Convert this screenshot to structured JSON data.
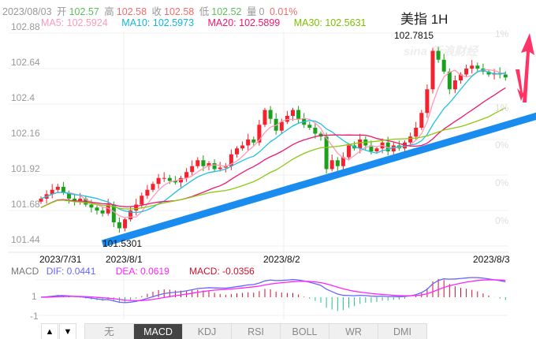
{
  "header": {
    "date": "2023/08/03",
    "open_label": "开",
    "open": "102.57",
    "high_label": "高",
    "high": "102.58",
    "close_label": "收",
    "close": "102.58",
    "low_label": "低",
    "low": "102.52",
    "vol_label": "量",
    "vol": "0",
    "change": "0.01%"
  },
  "ma": {
    "ma5": "MA5: 102.5924",
    "ma10": "MA10: 102.5973",
    "ma20": "MA20: 102.5899",
    "ma30": "MA30: 102.5631"
  },
  "colors": {
    "up": "#f5222d",
    "down": "#1aa01a",
    "ma5": "#ff9ab8",
    "ma10": "#1ec2e0",
    "ma20": "#f0186e",
    "ma30": "#8cc814",
    "dif": "#6666ff",
    "dea": "#ff22ff",
    "trend": "#1a8cf0",
    "arrow": "#ff3366"
  },
  "title": "美指 1H",
  "macd_header": {
    "label": "MACD",
    "dif": "DIF: 0.0441",
    "dea": "DEA: 0.0619",
    "macd": "MACD: -0.0356"
  },
  "toolbar": {
    "up": "▲",
    "down": "▼",
    "tabs": [
      "无",
      "MACD",
      "KDJ",
      "RSI",
      "BOLL",
      "WR",
      "DMI"
    ],
    "active": 1
  },
  "chart_data": {
    "type": "candlestick",
    "title": "美指 1H",
    "ylim": [
      101.44,
      102.88
    ],
    "yticks": [
      "102.88",
      "102.64",
      "102.4",
      "102.16",
      "101.92",
      "101.68",
      "101.44"
    ],
    "right_pct_labels": [
      "1%",
      "1%",
      "0%",
      "0%",
      "0%"
    ],
    "xticks": [
      "2023/7/31",
      "2023/8/1",
      "2023/8/2",
      "2023/8/3"
    ],
    "annotations": {
      "max": "102.7815",
      "min": "101.5301"
    },
    "macd_yticks": [
      "1",
      "-1"
    ],
    "closes": [
      101.76,
      101.79,
      101.82,
      101.84,
      101.8,
      101.76,
      101.74,
      101.76,
      101.72,
      101.7,
      101.68,
      101.66,
      101.72,
      101.6,
      101.56,
      101.62,
      101.68,
      101.72,
      101.78,
      101.82,
      101.86,
      101.9,
      101.9,
      101.88,
      101.87,
      101.9,
      101.94,
      101.98,
      102.02,
      101.98,
      102.0,
      101.96,
      101.97,
      101.98,
      102.06,
      102.1,
      102.12,
      102.16,
      102.14,
      102.26,
      102.36,
      102.3,
      102.22,
      102.28,
      102.32,
      102.36,
      102.3,
      102.26,
      102.24,
      102.2,
      102.18,
      101.96,
      102.02,
      101.98,
      102.04,
      102.12,
      102.1,
      102.16,
      102.12,
      102.08,
      102.1,
      102.14,
      102.08,
      102.12,
      102.1,
      102.14,
      102.18,
      102.24,
      102.34,
      102.5,
      102.76,
      102.7,
      102.62,
      102.5,
      102.56,
      102.6,
      102.64,
      102.66,
      102.64,
      102.62,
      102.6,
      102.61,
      102.6,
      102.58
    ]
  }
}
